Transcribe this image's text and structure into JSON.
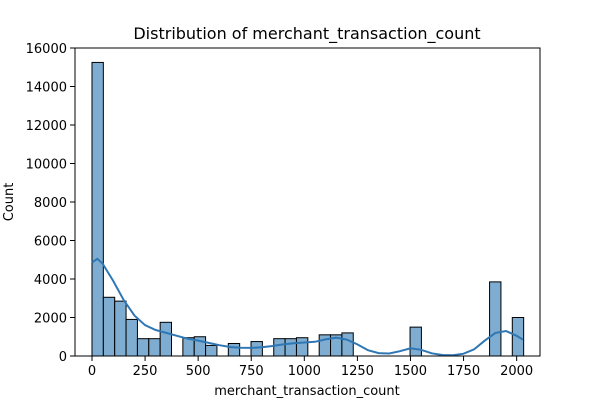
{
  "chart_data": {
    "type": "bar",
    "title": "Distribution of merchant_transaction_count",
    "xlabel": "merchant_transaction_count",
    "ylabel": "Count",
    "xlim": [
      -80,
      2110
    ],
    "ylim": [
      0,
      16000
    ],
    "xticks": [
      0,
      250,
      500,
      750,
      1000,
      1250,
      1500,
      1750,
      2000
    ],
    "xtick_labels": [
      "0",
      "250",
      "500",
      "750",
      "1000",
      "1250",
      "1500",
      "1750",
      "2000"
    ],
    "yticks": [
      0,
      2000,
      4000,
      6000,
      8000,
      10000,
      12000,
      14000,
      16000
    ],
    "ytick_labels": [
      "0",
      "2000",
      "4000",
      "6000",
      "8000",
      "10000",
      "12000",
      "14000",
      "16000"
    ],
    "bin_width": 53.5,
    "bin_starts": [
      0,
      53.5,
      107,
      160.5,
      214,
      267.5,
      321,
      428,
      481.5,
      535,
      642,
      749,
      856,
      909.5,
      963,
      1070,
      1123.5,
      1177,
      1498,
      1872.5,
      1979.5
    ],
    "values": [
      15250,
      3050,
      2850,
      1900,
      900,
      900,
      1750,
      950,
      1000,
      550,
      650,
      750,
      900,
      900,
      950,
      1100,
      1100,
      1200,
      1500,
      3850,
      2000
    ],
    "kde": {
      "x": [
        0,
        25,
        50,
        100,
        150,
        200,
        250,
        300,
        350,
        400,
        450,
        500,
        550,
        600,
        650,
        700,
        750,
        800,
        850,
        900,
        950,
        1000,
        1050,
        1100,
        1150,
        1200,
        1250,
        1300,
        1350,
        1400,
        1450,
        1500,
        1550,
        1600,
        1650,
        1700,
        1750,
        1800,
        1850,
        1900,
        1950,
        2000,
        2030
      ],
      "y": [
        4850,
        5050,
        4800,
        3900,
        2900,
        2100,
        1600,
        1350,
        1200,
        1050,
        900,
        800,
        680,
        560,
        470,
        430,
        420,
        450,
        520,
        600,
        660,
        700,
        740,
        860,
        950,
        850,
        600,
        300,
        150,
        130,
        250,
        400,
        320,
        140,
        50,
        40,
        120,
        350,
        800,
        1200,
        1300,
        1050,
        850
      ]
    },
    "colors": {
      "bar_fill": "#7eadd1",
      "bar_edge": "#000000",
      "kde_line": "#2f77b4"
    }
  }
}
